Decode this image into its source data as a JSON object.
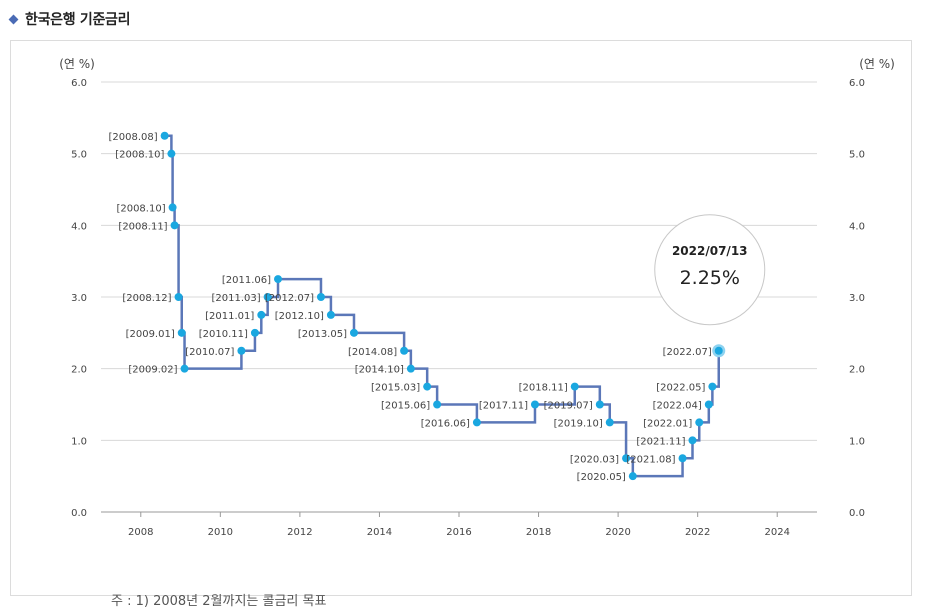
{
  "header": {
    "title": "한국은행 기준금리"
  },
  "note": "주 : 1) 2008년 2월까지는 콜금리 목표",
  "chart_data": {
    "type": "line",
    "step": true,
    "ylabel_left": "(연 %)",
    "ylabel_right": "(연 %)",
    "ylim": [
      0,
      6
    ],
    "y_ticks": [
      "0.0",
      "1.0",
      "2.0",
      "3.0",
      "4.0",
      "5.0",
      "6.0"
    ],
    "x_ticks": [
      "2008",
      "2010",
      "2012",
      "2014",
      "2016",
      "2018",
      "2020",
      "2022",
      "2024"
    ],
    "xlim": [
      2007.0,
      2025.0
    ],
    "grid": true,
    "line_color": "#5b77b8",
    "point_color": "#1aa7e0",
    "points": [
      {
        "x": 2008.6,
        "y": 5.25,
        "label": "[2008.08]"
      },
      {
        "x": 2008.77,
        "y": 5.0,
        "label": "[2008.10]"
      },
      {
        "x": 2008.8,
        "y": 4.25,
        "label": "[2008.10]"
      },
      {
        "x": 2008.85,
        "y": 4.0,
        "label": "[2008.11]"
      },
      {
        "x": 2008.95,
        "y": 3.0,
        "label": "[2008.12]"
      },
      {
        "x": 2009.03,
        "y": 2.5,
        "label": "[2009.01]"
      },
      {
        "x": 2009.1,
        "y": 2.0,
        "label": "[2009.02]"
      },
      {
        "x": 2010.53,
        "y": 2.25,
        "label": "[2010.07]"
      },
      {
        "x": 2010.87,
        "y": 2.5,
        "label": "[2010.11]"
      },
      {
        "x": 2011.03,
        "y": 2.75,
        "label": "[2011.01]"
      },
      {
        "x": 2011.19,
        "y": 3.0,
        "label": "[2011.03]"
      },
      {
        "x": 2011.45,
        "y": 3.25,
        "label": "[2011.06]"
      },
      {
        "x": 2012.53,
        "y": 3.0,
        "label": "[2012.07]"
      },
      {
        "x": 2012.78,
        "y": 2.75,
        "label": "[2012.10]"
      },
      {
        "x": 2013.36,
        "y": 2.5,
        "label": "[2013.05]"
      },
      {
        "x": 2014.62,
        "y": 2.25,
        "label": "[2014.08]"
      },
      {
        "x": 2014.79,
        "y": 2.0,
        "label": "[2014.10]"
      },
      {
        "x": 2015.2,
        "y": 1.75,
        "label": "[2015.03]"
      },
      {
        "x": 2015.45,
        "y": 1.5,
        "label": "[2015.06]"
      },
      {
        "x": 2016.45,
        "y": 1.25,
        "label": "[2016.06]"
      },
      {
        "x": 2017.91,
        "y": 1.5,
        "label": "[2017.11]"
      },
      {
        "x": 2018.91,
        "y": 1.75,
        "label": "[2018.11]"
      },
      {
        "x": 2019.54,
        "y": 1.5,
        "label": "[2019.07]"
      },
      {
        "x": 2019.79,
        "y": 1.25,
        "label": "[2019.10]"
      },
      {
        "x": 2020.2,
        "y": 0.75,
        "label": "[2020.03]"
      },
      {
        "x": 2020.37,
        "y": 0.5,
        "label": "[2020.05]"
      },
      {
        "x": 2021.62,
        "y": 0.75,
        "label": "[2021.08]"
      },
      {
        "x": 2021.87,
        "y": 1.0,
        "label": "[2021.11]"
      },
      {
        "x": 2022.04,
        "y": 1.25,
        "label": "[2022.01]"
      },
      {
        "x": 2022.28,
        "y": 1.5,
        "label": "[2022.04]"
      },
      {
        "x": 2022.37,
        "y": 1.75,
        "label": "[2022.05]"
      },
      {
        "x": 2022.53,
        "y": 2.25,
        "label": "[2022.07]"
      }
    ],
    "tooltip": {
      "date": "2022/07/13",
      "value": "2.25%"
    }
  }
}
